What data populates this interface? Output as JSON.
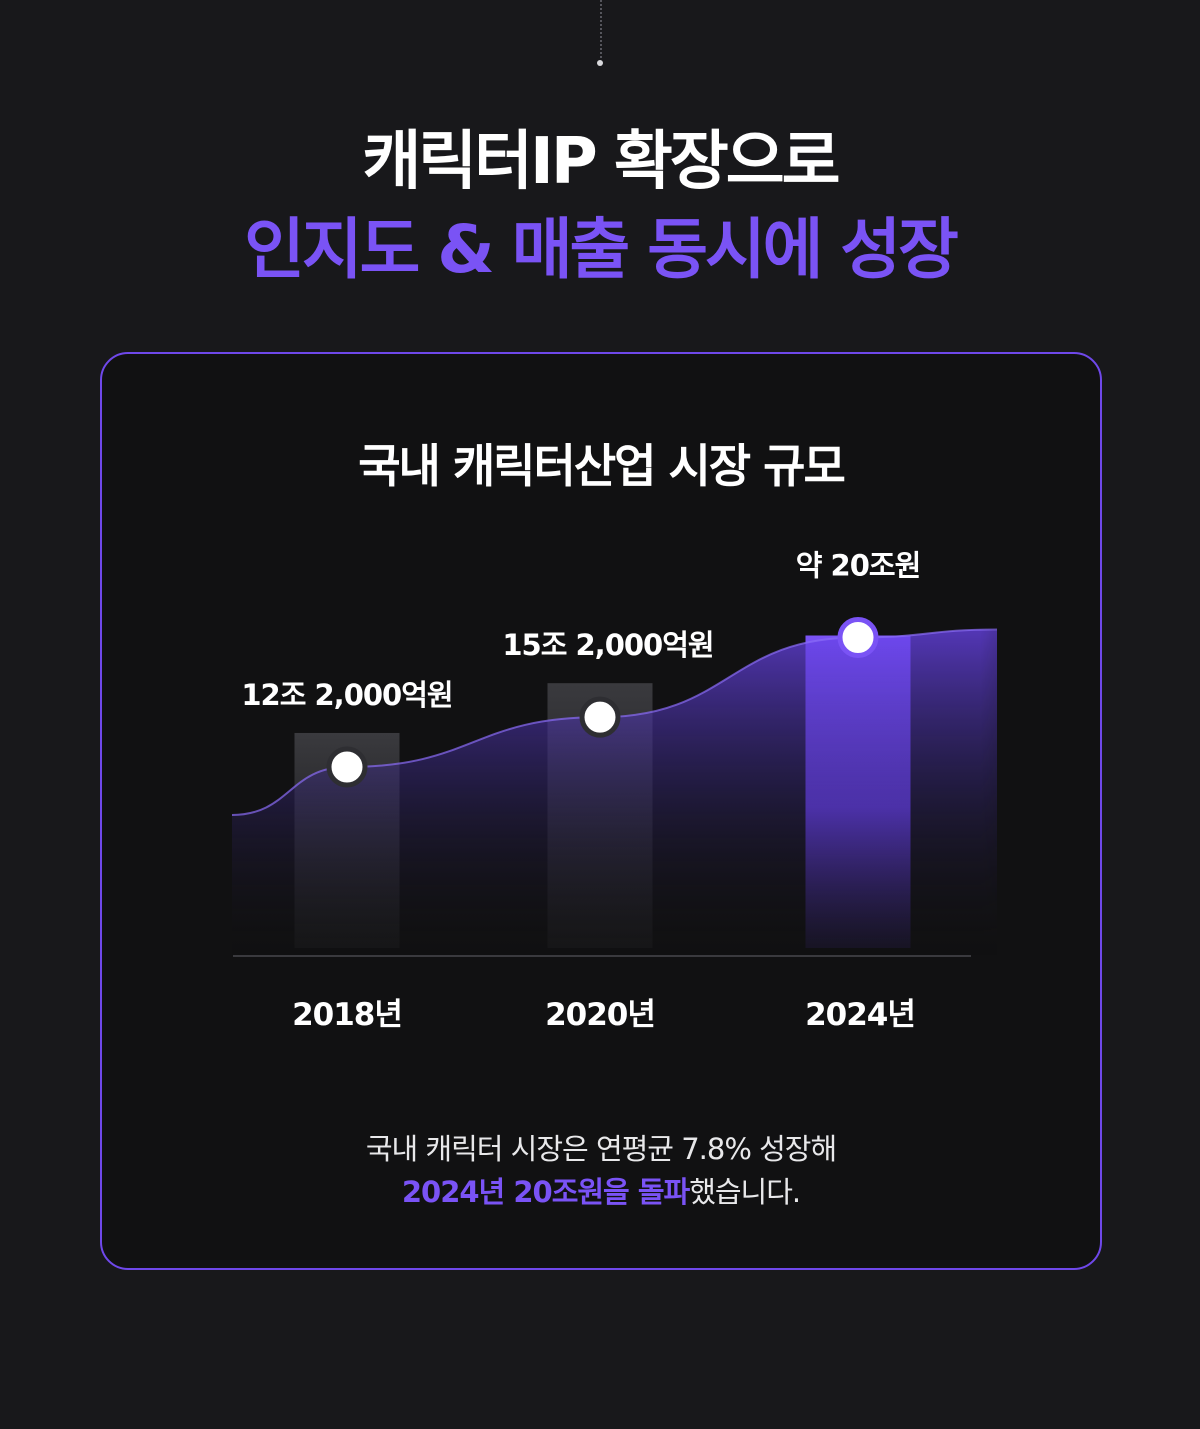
{
  "headline": {
    "line1": "캐릭터IP 확장으로",
    "line2": "인지도 & 매출 동시에 성장"
  },
  "card": {
    "title": "국내 캐릭터산업 시장 규모",
    "caption_line1": "국내 캐릭터 시장은 연평균 7.8% 성장해",
    "caption_line2_highlight": "2024년 20조원을 돌파",
    "caption_line2_rest": "했습니다."
  },
  "colors": {
    "accent": "#7a53f5",
    "background": "#18181b",
    "card_background": "#111112",
    "card_border": "#6f48ea"
  },
  "chart_data": {
    "type": "bar",
    "categories": [
      "2018년",
      "2020년",
      "2024년"
    ],
    "values": [
      12.2,
      15.2,
      20
    ],
    "data_labels": [
      "12조 2,000억원",
      "15조 2,000억원",
      "약 20조원"
    ],
    "highlight_index": 2,
    "overlay_line": true,
    "title": "국내 캐릭터산업 시장 규모",
    "xlabel": "",
    "ylabel": "",
    "grid": false
  }
}
